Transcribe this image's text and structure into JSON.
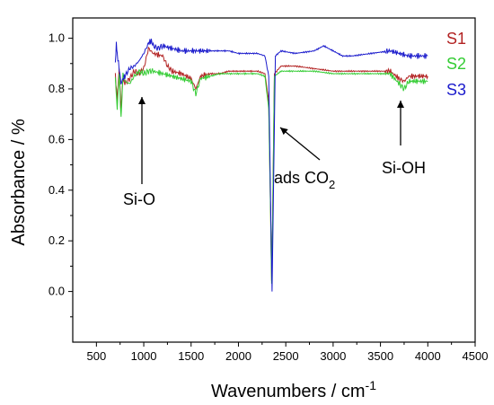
{
  "chart_data": {
    "type": "line",
    "xlabel": "Wavenumbers / cm",
    "xlabel_superscript": "-1",
    "ylabel": "Absorbance / %",
    "xlim": [
      250,
      4500
    ],
    "ylim": [
      -0.2,
      1.08
    ],
    "x_ticks": [
      500,
      1000,
      1500,
      2000,
      2500,
      3000,
      3500,
      4000,
      4500
    ],
    "y_ticks": [
      0.0,
      0.2,
      0.4,
      0.6,
      0.8,
      1.0
    ],
    "x_tick_labels": [
      "500",
      "1000",
      "1500",
      "2000",
      "2500",
      "3000",
      "3500",
      "4000",
      "4500"
    ],
    "y_tick_labels": [
      "0.0",
      "0.2",
      "0.4",
      "0.6",
      "0.8",
      "1.0"
    ],
    "grid": false,
    "legend_position": "top-right",
    "series": [
      {
        "name": "S1",
        "color": "#b22222",
        "points": [
          [
            700,
            0.86
          ],
          [
            720,
            0.75
          ],
          [
            740,
            0.88
          ],
          [
            760,
            0.72
          ],
          [
            780,
            0.84
          ],
          [
            800,
            0.82
          ],
          [
            850,
            0.84
          ],
          [
            900,
            0.87
          ],
          [
            950,
            0.86
          ],
          [
            1000,
            0.88
          ],
          [
            1050,
            0.96
          ],
          [
            1100,
            0.94
          ],
          [
            1200,
            0.93
          ],
          [
            1250,
            0.89
          ],
          [
            1300,
            0.87
          ],
          [
            1400,
            0.86
          ],
          [
            1500,
            0.84
          ],
          [
            1550,
            0.8
          ],
          [
            1600,
            0.85
          ],
          [
            1700,
            0.86
          ],
          [
            1800,
            0.86
          ],
          [
            1900,
            0.87
          ],
          [
            2000,
            0.87
          ],
          [
            2100,
            0.87
          ],
          [
            2200,
            0.87
          ],
          [
            2280,
            0.86
          ],
          [
            2320,
            0.75
          ],
          [
            2340,
            0.3
          ],
          [
            2350,
            0.04
          ],
          [
            2360,
            0.25
          ],
          [
            2380,
            0.86
          ],
          [
            2450,
            0.89
          ],
          [
            2600,
            0.89
          ],
          [
            2800,
            0.88
          ],
          [
            3000,
            0.87
          ],
          [
            3200,
            0.87
          ],
          [
            3400,
            0.87
          ],
          [
            3600,
            0.87
          ],
          [
            3700,
            0.84
          ],
          [
            3750,
            0.83
          ],
          [
            3800,
            0.85
          ],
          [
            3900,
            0.85
          ],
          [
            4000,
            0.85
          ]
        ]
      },
      {
        "name": "S2",
        "color": "#33cc33",
        "points": [
          [
            700,
            0.84
          ],
          [
            720,
            0.72
          ],
          [
            740,
            0.86
          ],
          [
            760,
            0.68
          ],
          [
            780,
            0.86
          ],
          [
            800,
            0.83
          ],
          [
            850,
            0.82
          ],
          [
            900,
            0.85
          ],
          [
            950,
            0.87
          ],
          [
            1000,
            0.86
          ],
          [
            1050,
            0.87
          ],
          [
            1100,
            0.87
          ],
          [
            1200,
            0.86
          ],
          [
            1300,
            0.85
          ],
          [
            1400,
            0.84
          ],
          [
            1500,
            0.83
          ],
          [
            1550,
            0.78
          ],
          [
            1600,
            0.84
          ],
          [
            1700,
            0.85
          ],
          [
            1800,
            0.86
          ],
          [
            1900,
            0.86
          ],
          [
            2000,
            0.86
          ],
          [
            2100,
            0.86
          ],
          [
            2200,
            0.86
          ],
          [
            2280,
            0.85
          ],
          [
            2320,
            0.72
          ],
          [
            2340,
            0.3
          ],
          [
            2350,
            0.03
          ],
          [
            2360,
            0.25
          ],
          [
            2380,
            0.85
          ],
          [
            2450,
            0.87
          ],
          [
            2600,
            0.87
          ],
          [
            2800,
            0.87
          ],
          [
            3000,
            0.86
          ],
          [
            3200,
            0.86
          ],
          [
            3400,
            0.86
          ],
          [
            3600,
            0.86
          ],
          [
            3700,
            0.82
          ],
          [
            3750,
            0.8
          ],
          [
            3800,
            0.83
          ],
          [
            3900,
            0.83
          ],
          [
            4000,
            0.83
          ]
        ]
      },
      {
        "name": "S3",
        "color": "#1a1acc",
        "points": [
          [
            700,
            0.9
          ],
          [
            710,
            0.98
          ],
          [
            720,
            0.94
          ],
          [
            740,
            0.88
          ],
          [
            760,
            0.82
          ],
          [
            780,
            0.84
          ],
          [
            800,
            0.85
          ],
          [
            850,
            0.88
          ],
          [
            900,
            0.89
          ],
          [
            950,
            0.91
          ],
          [
            1000,
            0.94
          ],
          [
            1050,
            0.98
          ],
          [
            1080,
            0.99
          ],
          [
            1100,
            0.97
          ],
          [
            1150,
            0.96
          ],
          [
            1200,
            0.97
          ],
          [
            1300,
            0.96
          ],
          [
            1400,
            0.95
          ],
          [
            1500,
            0.95
          ],
          [
            1600,
            0.95
          ],
          [
            1700,
            0.95
          ],
          [
            1800,
            0.95
          ],
          [
            1900,
            0.95
          ],
          [
            2000,
            0.94
          ],
          [
            2100,
            0.94
          ],
          [
            2200,
            0.94
          ],
          [
            2280,
            0.93
          ],
          [
            2320,
            0.85
          ],
          [
            2340,
            0.35
          ],
          [
            2355,
            0.0
          ],
          [
            2370,
            0.4
          ],
          [
            2390,
            0.93
          ],
          [
            2450,
            0.95
          ],
          [
            2600,
            0.94
          ],
          [
            2800,
            0.95
          ],
          [
            2900,
            0.97
          ],
          [
            3000,
            0.95
          ],
          [
            3100,
            0.93
          ],
          [
            3200,
            0.93
          ],
          [
            3400,
            0.94
          ],
          [
            3600,
            0.95
          ],
          [
            3700,
            0.94
          ],
          [
            3800,
            0.93
          ],
          [
            3900,
            0.93
          ],
          [
            4000,
            0.93
          ]
        ]
      }
    ],
    "annotations": [
      {
        "label": "Si-O",
        "x": 950,
        "y": 0.82
      },
      {
        "label": "ads CO",
        "subscript": "2",
        "x": 2440,
        "y": 1.02
      },
      {
        "label": "Si-OH",
        "x": 3720,
        "y": 0.82
      }
    ]
  }
}
